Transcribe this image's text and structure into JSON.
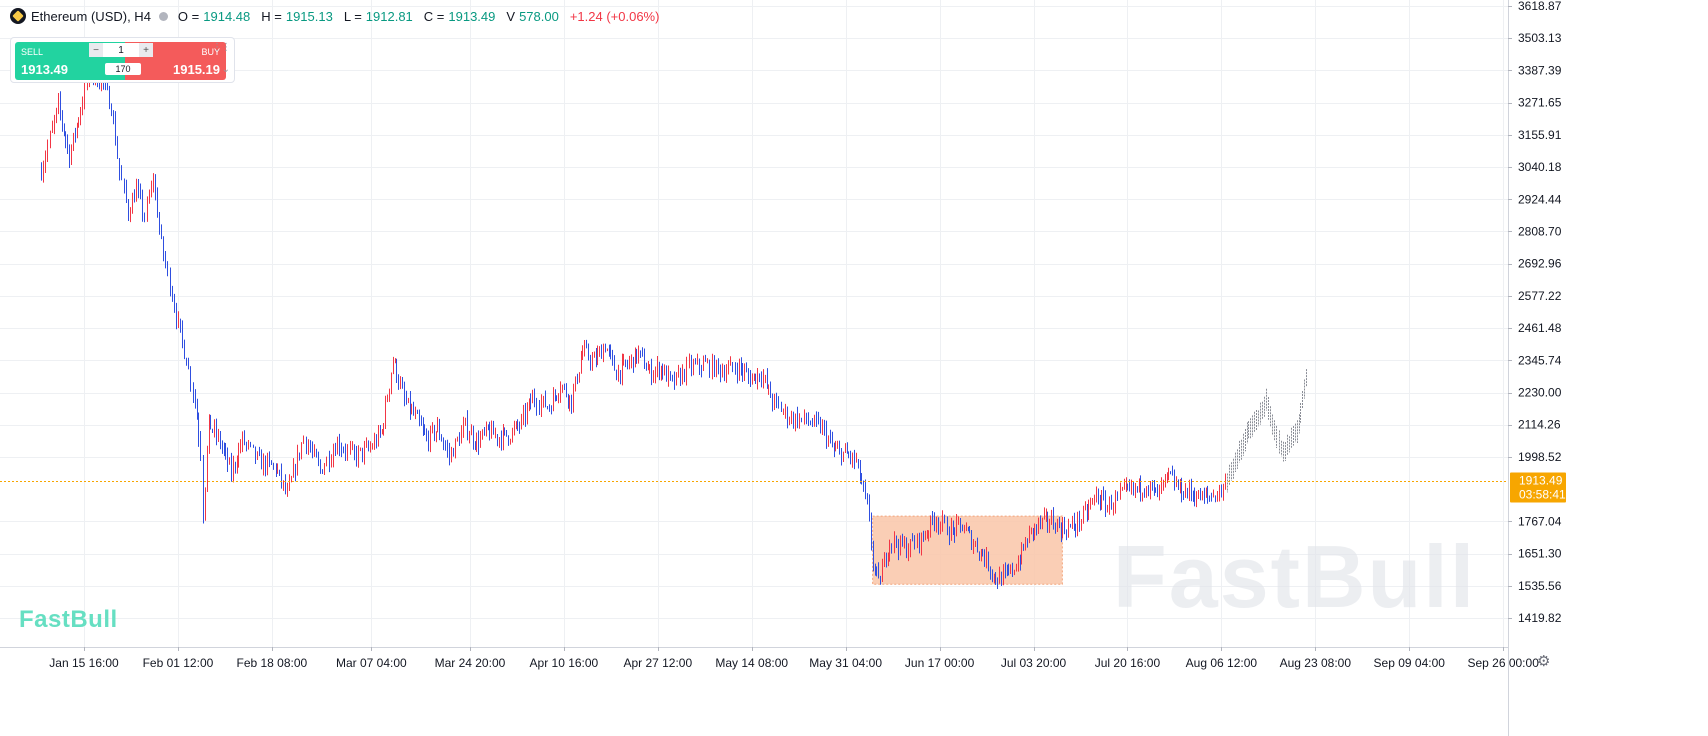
{
  "header": {
    "symbol": "Ethereum (USD), H4",
    "open_label": "O =",
    "open": "1914.48",
    "high_label": "H =",
    "high": "1915.13",
    "low_label": "L =",
    "low": "1912.81",
    "close_label": "C =",
    "close": "1913.49",
    "volume_label": "V",
    "volume": "578.00",
    "change": "+1.24 (+0.06%)"
  },
  "trade_panel": {
    "sell_label": "SELL",
    "sell_price": "1913.49",
    "buy_label": "BUY",
    "buy_price": "1915.19",
    "quantity": "1",
    "spread": "170",
    "minus": "−",
    "plus": "+"
  },
  "watermark_small": "FastBull",
  "watermark_large": "FastBull",
  "colors": {
    "up": "#f23645",
    "down": "#2f4fe0",
    "range_box": "#f9c6a8",
    "current_line": "#f7a600",
    "sell": "#22d3a0",
    "buy": "#f45b5b"
  },
  "chart_data": {
    "type": "candlestick",
    "symbol": "Ethereum (USD)",
    "timeframe": "H4",
    "x_ticks": [
      "Jan 15 16:00",
      "Feb 01 12:00",
      "Feb 18 08:00",
      "Mar 07 04:00",
      "Mar 24 20:00",
      "Apr 10 16:00",
      "Apr 27 12:00",
      "May 14 08:00",
      "May 31 04:00",
      "Jun 17 00:00",
      "Jul 03 20:00",
      "Jul 20 16:00",
      "Aug 06 12:00",
      "Aug 23 08:00",
      "Sep 09 04:00",
      "Sep 26 00:00"
    ],
    "y_ticks": [
      "3618.87",
      "3503.13",
      "3387.39",
      "3271.65",
      "3155.91",
      "3040.18",
      "2924.44",
      "2808.70",
      "2692.96",
      "2577.22",
      "2461.48",
      "2345.74",
      "2230.00",
      "2114.26",
      "1998.52",
      "1767.04",
      "1651.30",
      "1535.56",
      "1419.82"
    ],
    "ylim": [
      1350,
      3630
    ],
    "current_price": "1913.49",
    "countdown": "03:58:41",
    "price_path": [
      {
        "x": "Jan 08 00:00",
        "y": 3030
      },
      {
        "x": "Jan 11 00:00",
        "y": 3260
      },
      {
        "x": "Jan 13 00:00",
        "y": 3080
      },
      {
        "x": "Jan 15 00:00",
        "y": 3250
      },
      {
        "x": "Jan 16 12:00",
        "y": 3380
      },
      {
        "x": "Jan 19 00:00",
        "y": 3340
      },
      {
        "x": "Jan 20 12:00",
        "y": 3260
      },
      {
        "x": "Jan 22 00:00",
        "y": 3020
      },
      {
        "x": "Jan 23 12:00",
        "y": 2880
      },
      {
        "x": "Jan 25 00:00",
        "y": 2960
      },
      {
        "x": "Jan 26 12:00",
        "y": 2860
      },
      {
        "x": "Jan 28 00:00",
        "y": 3000
      },
      {
        "x": "Jan 29 12:00",
        "y": 2760
      },
      {
        "x": "Jan 31 00:00",
        "y": 2620
      },
      {
        "x": "Feb 01 12:00",
        "y": 2470
      },
      {
        "x": "Feb 03 00:00",
        "y": 2350
      },
      {
        "x": "Feb 04 12:00",
        "y": 2200
      },
      {
        "x": "Feb 05 12:00",
        "y": 2020
      },
      {
        "x": "Feb 06 00:00",
        "y": 1800
      },
      {
        "x": "Feb 07 00:00",
        "y": 2120
      },
      {
        "x": "Feb 09 00:00",
        "y": 2050
      },
      {
        "x": "Feb 11 00:00",
        "y": 1940
      },
      {
        "x": "Feb 13 00:00",
        "y": 2060
      },
      {
        "x": "Feb 16 00:00",
        "y": 1980
      },
      {
        "x": "Feb 19 00:00",
        "y": 1960
      },
      {
        "x": "Feb 21 00:00",
        "y": 1860
      },
      {
        "x": "Feb 24 00:00",
        "y": 2070
      },
      {
        "x": "Feb 27 00:00",
        "y": 1950
      },
      {
        "x": "Mar 01 00:00",
        "y": 2050
      },
      {
        "x": "Mar 04 00:00",
        "y": 2000
      },
      {
        "x": "Mar 07 00:00",
        "y": 2030
      },
      {
        "x": "Mar 09 00:00",
        "y": 2090
      },
      {
        "x": "Mar 11 00:00",
        "y": 2350
      },
      {
        "x": "Mar 13 00:00",
        "y": 2200
      },
      {
        "x": "Mar 15 00:00",
        "y": 2140
      },
      {
        "x": "Mar 17 00:00",
        "y": 2060
      },
      {
        "x": "Mar 19 00:00",
        "y": 2100
      },
      {
        "x": "Mar 21 00:00",
        "y": 2000
      },
      {
        "x": "Mar 24 00:00",
        "y": 2110
      },
      {
        "x": "Mar 26 00:00",
        "y": 2050
      },
      {
        "x": "Mar 28 00:00",
        "y": 2090
      },
      {
        "x": "Mar 30 00:00",
        "y": 2070
      },
      {
        "x": "Apr 01 00:00",
        "y": 2080
      },
      {
        "x": "Apr 03 00:00",
        "y": 2120
      },
      {
        "x": "Apr 05 00:00",
        "y": 2210
      },
      {
        "x": "Apr 08 00:00",
        "y": 2180
      },
      {
        "x": "Apr 10 00:00",
        "y": 2260
      },
      {
        "x": "Apr 12 00:00",
        "y": 2200
      },
      {
        "x": "Apr 14 00:00",
        "y": 2380
      },
      {
        "x": "Apr 16 00:00",
        "y": 2340
      },
      {
        "x": "Apr 18 00:00",
        "y": 2400
      },
      {
        "x": "Apr 20 00:00",
        "y": 2300
      },
      {
        "x": "Apr 22 00:00",
        "y": 2330
      },
      {
        "x": "Apr 24 00:00",
        "y": 2370
      },
      {
        "x": "Apr 26 00:00",
        "y": 2300
      },
      {
        "x": "Apr 28 00:00",
        "y": 2320
      },
      {
        "x": "Apr 30 00:00",
        "y": 2260
      },
      {
        "x": "May 03 00:00",
        "y": 2320
      },
      {
        "x": "May 06 00:00",
        "y": 2330
      },
      {
        "x": "May 09 00:00",
        "y": 2310
      },
      {
        "x": "May 12 00:00",
        "y": 2320
      },
      {
        "x": "May 14 00:00",
        "y": 2280
      },
      {
        "x": "May 16 00:00",
        "y": 2300
      },
      {
        "x": "May 18 00:00",
        "y": 2200
      },
      {
        "x": "May 21 00:00",
        "y": 2140
      },
      {
        "x": "May 24 00:00",
        "y": 2130
      },
      {
        "x": "May 27 00:00",
        "y": 2100
      },
      {
        "x": "May 29 00:00",
        "y": 2020
      },
      {
        "x": "May 31 00:00",
        "y": 2010
      },
      {
        "x": "Jun 02 00:00",
        "y": 1980
      },
      {
        "x": "Jun 04 00:00",
        "y": 1820
      },
      {
        "x": "Jun 05 00:00",
        "y": 1620
      },
      {
        "x": "Jun 06 00:00",
        "y": 1540
      },
      {
        "x": "Jun 08 00:00",
        "y": 1700
      },
      {
        "x": "Jun 11 00:00",
        "y": 1670
      },
      {
        "x": "Jun 14 00:00",
        "y": 1710
      },
      {
        "x": "Jun 16 00:00",
        "y": 1780
      },
      {
        "x": "Jun 19 00:00",
        "y": 1730
      },
      {
        "x": "Jun 21 00:00",
        "y": 1750
      },
      {
        "x": "Jun 23 00:00",
        "y": 1690
      },
      {
        "x": "Jun 25 00:00",
        "y": 1640
      },
      {
        "x": "Jun 27 00:00",
        "y": 1560
      },
      {
        "x": "Jun 29 00:00",
        "y": 1570
      },
      {
        "x": "Jul 01 00:00",
        "y": 1620
      },
      {
        "x": "Jul 03 00:00",
        "y": 1720
      },
      {
        "x": "Jul 05 00:00",
        "y": 1760
      },
      {
        "x": "Jul 07 00:00",
        "y": 1770
      },
      {
        "x": "Jul 09 00:00",
        "y": 1740
      },
      {
        "x": "Jul 11 00:00",
        "y": 1750
      },
      {
        "x": "Jul 13 00:00",
        "y": 1790
      },
      {
        "x": "Jul 15 00:00",
        "y": 1860
      },
      {
        "x": "Jul 17 00:00",
        "y": 1820
      },
      {
        "x": "Jul 20 00:00",
        "y": 1870
      },
      {
        "x": "Jul 22 00:00",
        "y": 1880
      },
      {
        "x": "Jul 24 00:00",
        "y": 1900
      },
      {
        "x": "Jul 26 00:00",
        "y": 1860
      },
      {
        "x": "Jul 28 00:00",
        "y": 1930
      },
      {
        "x": "Jul 30 00:00",
        "y": 1880
      },
      {
        "x": "Aug 01 00:00",
        "y": 1870
      },
      {
        "x": "Aug 03 00:00",
        "y": 1850
      },
      {
        "x": "Aug 05 00:00",
        "y": 1860
      },
      {
        "x": "Aug 06 12:00",
        "y": 1880
      },
      {
        "x": "Aug 07 12:00",
        "y": 1913
      }
    ],
    "projection_path": [
      {
        "x": "Aug 07 12:00",
        "y": 1913
      },
      {
        "x": "Aug 09 00:00",
        "y": 1980
      },
      {
        "x": "Aug 11 00:00",
        "y": 2080
      },
      {
        "x": "Aug 13 00:00",
        "y": 2140
      },
      {
        "x": "Aug 14 12:00",
        "y": 2200
      },
      {
        "x": "Aug 16 00:00",
        "y": 2090
      },
      {
        "x": "Aug 17 12:00",
        "y": 2010
      },
      {
        "x": "Aug 19 00:00",
        "y": 2060
      },
      {
        "x": "Aug 20 00:00",
        "y": 2090
      },
      {
        "x": "Aug 21 00:00",
        "y": 2200
      },
      {
        "x": "Aug 22 00:00",
        "y": 2330
      }
    ],
    "range_box": {
      "x_start": "Jun 05 00:00",
      "x_end": "Jul 09 00:00",
      "y_top": 1786,
      "y_bottom": 1541
    }
  }
}
